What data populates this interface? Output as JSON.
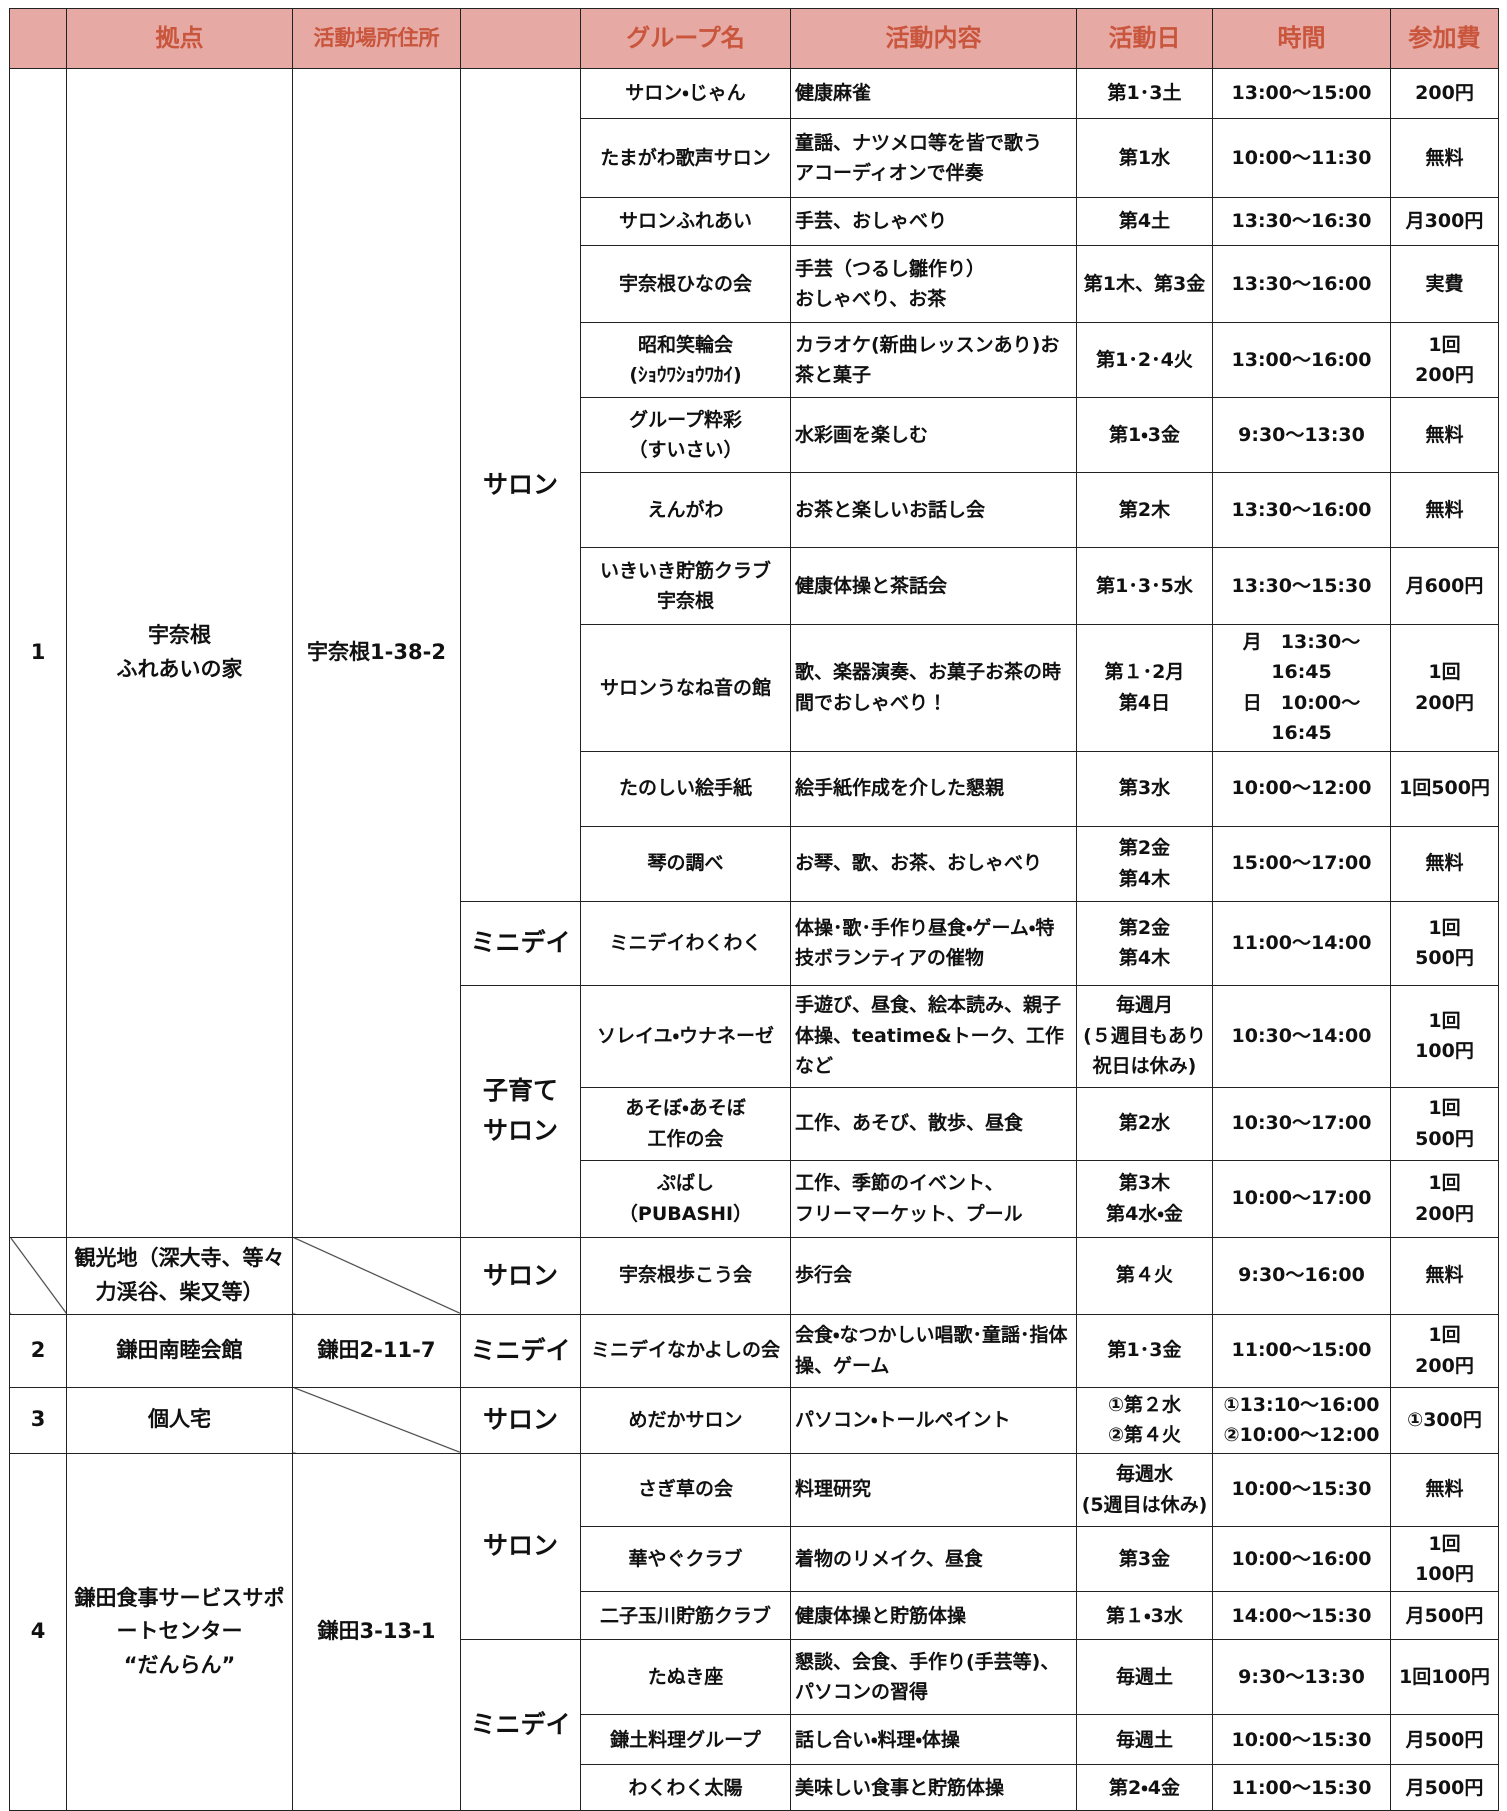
{
  "header": [
    "拠点",
    "活動場所住所",
    "グループ名",
    "活動内容",
    "活動日",
    "時間",
    "参加費"
  ],
  "sites": [
    {
      "no": "1",
      "name": "宇奈根\nふれあいの家",
      "address": "宇奈根1-38-2",
      "blocks": [
        {
          "type": "サロン",
          "groups": [
            {
              "name": "サロン・じゃん",
              "content": "健康麻雀",
              "day": "第1･3土",
              "time": "13:00～15:00",
              "fee": "200円"
            },
            {
              "name": "たまがわ歌声サロン",
              "content": "童謡、ナツメロ等を皆で歌う\nアコーディオンで伴奏",
              "day": "第1水",
              "time": "10:00～11:30",
              "fee": "無料"
            },
            {
              "name": "サロンふれあい",
              "content": "手芸、おしゃべり",
              "day": "第4土",
              "time": "13:30～16:30",
              "fee": "月300円"
            },
            {
              "name": "宇奈根ひなの会",
              "content": "手芸（つるし雛作り）\nおしゃべり、お茶",
              "day": "第1木、第3金",
              "time": "13:30～16:00",
              "fee": "実費"
            },
            {
              "name": "昭和笑輪会\n(ｼｮｳﾜｼｮｳﾜｶｲ)",
              "content": "カラオケ(新曲レッスンあり)お茶と菓子",
              "day": "第1･2･4火",
              "time": "13:00～16:00",
              "fee": "1回\n200円"
            },
            {
              "name": "グループ粋彩\n（すいさい）",
              "content": "水彩画を楽しむ",
              "day": "第1・3金",
              "time": "9:30～13:30",
              "fee": "無料"
            },
            {
              "name": "えんがわ",
              "content": "お茶と楽しいお話し会",
              "day": "第2木",
              "time": "13:30～16:00",
              "fee": "無料"
            },
            {
              "name": "いきいき貯筋クラブ\n宇奈根",
              "content": "健康体操と茶話会",
              "day": "第1･3･5水",
              "time": "13:30～15:30",
              "fee": "月600円"
            },
            {
              "name": "サロンうなね音の館",
              "content": "歌、楽器演奏、お菓子お茶の時間でおしゃべり！",
              "day": "第１･2月\n第4日",
              "time": "月　13:30～16:45\n日　10:00～16:45",
              "fee": "1回\n200円"
            },
            {
              "name": "たのしい絵手紙",
              "content": "絵手紙作成を介した懇親",
              "day": "第3水",
              "time": "10:00～12:00",
              "fee": "1回500円"
            },
            {
              "name": "琴の調べ",
              "content": "お琴、歌、お茶、おしゃべり",
              "day": "第2金\n第4木",
              "time": "15:00～17:00",
              "fee": "無料"
            }
          ]
        },
        {
          "type": "ミニデイ",
          "groups": [
            {
              "name": "ミニデイわくわく",
              "content": "体操･歌･手作り昼食・ゲーム・特技ボランティアの催物",
              "day": "第2金\n第4木",
              "time": "11:00～14:00",
              "fee": "1回\n500円"
            }
          ]
        },
        {
          "type": "子育て\nサロン",
          "groups": [
            {
              "name": "ソレイユ・ウナネーゼ",
              "content": "手遊び、昼食、絵本読み、親子体操、teatime&トーク、工作など",
              "day": "毎週月\n(５週目もあり\n祝日は休み)",
              "time": "10:30～14:00",
              "fee": "1回\n100円"
            },
            {
              "name": "あそぼ・あそぼ\n工作の会",
              "content": "工作、あそび、散歩、昼食",
              "day": "第2水",
              "time": "10:30～17:00",
              "fee": "1回\n500円"
            },
            {
              "name": "ぷばし\n（PUBASHI）",
              "content": "工作、季節のイベント、\nフリーマーケット、プール",
              "day": "第3木\n第4水・金",
              "time": "10:00～17:00",
              "fee": "1回\n200円"
            }
          ]
        }
      ]
    },
    {
      "name": "観光地（深大寺、等々力渓谷、柴又等）",
      "blocks": [
        {
          "type": "サロン",
          "groups": [
            {
              "name": "宇奈根歩こう会",
              "content": "歩行会",
              "day": "第４火",
              "time": "9:30～16:00",
              "fee": "無料"
            }
          ]
        }
      ]
    },
    {
      "no": "2",
      "name": "鎌田南睦会館",
      "address": "鎌田2-11-7",
      "blocks": [
        {
          "type": "ミニデイ",
          "groups": [
            {
              "name": "ミニデイなかよしの会",
              "content": "会食・なつかしい唱歌･童謡･指体操、ゲーム",
              "day": "第1･3金",
              "time": "11:00～15:00",
              "fee": "1回\n200円"
            }
          ]
        }
      ]
    },
    {
      "no": "3",
      "name": "個人宅",
      "blocks": [
        {
          "type": "サロン",
          "groups": [
            {
              "name": "めだかサロン",
              "content": "パソコン・トールペイント",
              "day": "①第２水\n②第４火",
              "time": "①13:10～16:00\n②10:00～12:00",
              "fee": "①300円"
            }
          ]
        }
      ]
    },
    {
      "no": "4",
      "name": "鎌田食事サービスサポートセンター\n“だんらん”",
      "address": "鎌田3-13-1",
      "blocks": [
        {
          "type": "サロン",
          "groups": [
            {
              "name": "さぎ草の会",
              "content": "料理研究",
              "day": "毎週水\n(5週目は休み)",
              "time": "10:00～15:30",
              "fee": "無料"
            },
            {
              "name": "華やぐクラブ",
              "content": "着物のリメイク、昼食",
              "day": "第3金",
              "time": "10:00～16:00",
              "fee": "1回\n100円"
            },
            {
              "name": "二子玉川貯筋クラブ",
              "content": "健康体操と貯筋体操",
              "day": "第１・3水",
              "time": "14:00～15:30",
              "fee": "月500円"
            }
          ]
        },
        {
          "type": "ミニデイ",
          "groups": [
            {
              "name": "たぬき座",
              "content": "懇談、会食、手作り(手芸等)、パソコンの習得",
              "day": "毎週土",
              "time": "9:30～13:30",
              "fee": "1回100円"
            },
            {
              "name": "鎌土料理グループ",
              "content": "話し合い・料理・体操",
              "day": "毎週土",
              "time": "10:00～15:30",
              "fee": "月500円"
            },
            {
              "name": "わくわく太陽",
              "content": "美味しい食事と貯筋体操",
              "day": "第2・4金",
              "time": "11:00～15:30",
              "fee": "月500円"
            }
          ]
        }
      ]
    }
  ]
}
